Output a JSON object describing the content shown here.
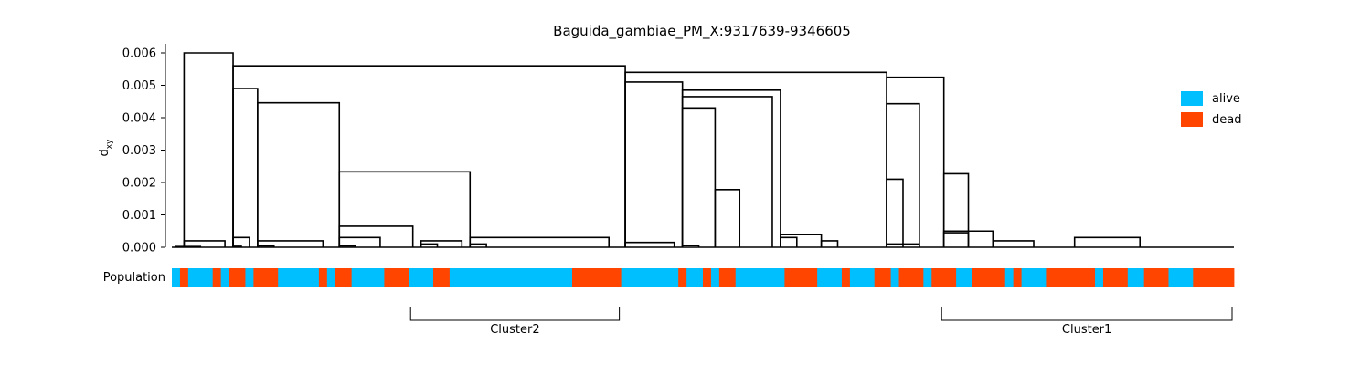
{
  "chart_data": {
    "type": "dendrogram",
    "title": "Baguida_gambiae_PM_X:9317639-9346605",
    "ylabel": "d",
    "ylabel_subscript": "xy",
    "ylim": [
      0,
      0.0063
    ],
    "yticks": [
      "0.000",
      "0.001",
      "0.002",
      "0.003",
      "0.004",
      "0.005",
      "0.006"
    ],
    "ytick_values": [
      0,
      0.001,
      0.002,
      0.003,
      0.004,
      0.005,
      0.006
    ],
    "leaf_count": 130,
    "grid": false,
    "legend": {
      "placement": "right",
      "entries": [
        {
          "label": "alive",
          "color": "#00BFFF"
        },
        {
          "label": "dead",
          "color": "#FF4500"
        }
      ]
    },
    "population_bar": {
      "label": "Population",
      "segments": [
        [
          "alive",
          1
        ],
        [
          "dead",
          1
        ],
        [
          "alive",
          3
        ],
        [
          "dead",
          1
        ],
        [
          "alive",
          1
        ],
        [
          "dead",
          2
        ],
        [
          "alive",
          1
        ],
        [
          "dead",
          3
        ],
        [
          "alive",
          5
        ],
        [
          "dead",
          1
        ],
        [
          "alive",
          1
        ],
        [
          "dead",
          2
        ],
        [
          "alive",
          4
        ],
        [
          "dead",
          3
        ],
        [
          "alive",
          3
        ],
        [
          "dead",
          2
        ],
        [
          "alive",
          15
        ],
        [
          "dead",
          6
        ],
        [
          "alive",
          7
        ],
        [
          "dead",
          1
        ],
        [
          "alive",
          2
        ],
        [
          "dead",
          1
        ],
        [
          "alive",
          1
        ],
        [
          "dead",
          2
        ],
        [
          "alive",
          6
        ],
        [
          "dead",
          4
        ],
        [
          "alive",
          3
        ],
        [
          "dead",
          1
        ],
        [
          "alive",
          3
        ],
        [
          "dead",
          2
        ],
        [
          "alive",
          1
        ],
        [
          "dead",
          3
        ],
        [
          "alive",
          1
        ],
        [
          "dead",
          3
        ],
        [
          "alive",
          2
        ],
        [
          "dead",
          4
        ],
        [
          "alive",
          1
        ],
        [
          "dead",
          1
        ],
        [
          "alive",
          3
        ],
        [
          "dead",
          6
        ],
        [
          "alive",
          1
        ],
        [
          "dead",
          3
        ],
        [
          "alive",
          2
        ],
        [
          "dead",
          3
        ],
        [
          "alive",
          3
        ],
        [
          "dead",
          5
        ]
      ]
    },
    "merges": [
      {
        "left": 0,
        "right": 3,
        "height": 2.5e-05
      },
      {
        "left": 1,
        "right": 6,
        "height": 0.0002
      },
      {
        "left": 7,
        "right": 8,
        "height": 3e-05
      },
      {
        "left": 7,
        "right": 9,
        "height": 0.0003
      },
      {
        "left": 10,
        "right": 12,
        "height": 4e-05
      },
      {
        "left": 10,
        "right": 18,
        "height": 0.0002
      },
      {
        "left": 20,
        "right": 22,
        "height": 4e-05
      },
      {
        "left": 20,
        "right": 25,
        "height": 0.0003
      },
      {
        "left": 20,
        "right": 29,
        "height": 0.00065
      },
      {
        "left": 30,
        "right": 32,
        "height": 0.0001
      },
      {
        "left": 30,
        "right": 35,
        "height": 0.0002
      },
      {
        "left": 36,
        "right": 38,
        "height": 0.0001
      },
      {
        "left": 36,
        "right": 53,
        "height": 0.0003
      },
      {
        "left": 20,
        "right": 36,
        "height": 0.00233
      },
      {
        "left": 10,
        "right": 20,
        "height": 0.00446
      },
      {
        "left": 7,
        "right": 10,
        "height": 0.0049
      },
      {
        "left": 55,
        "right": 61,
        "height": 0.00015
      },
      {
        "left": 62,
        "right": 64,
        "height": 5e-05
      },
      {
        "left": 66,
        "right": 69,
        "height": 0.00178
      },
      {
        "left": 62,
        "right": 66,
        "height": 0.0043
      },
      {
        "left": 62,
        "right": 73,
        "height": 0.00465
      },
      {
        "left": 74,
        "right": 76,
        "height": 0.0003
      },
      {
        "left": 79,
        "right": 81,
        "height": 0.0002
      },
      {
        "left": 74,
        "right": 79,
        "height": 0.0004
      },
      {
        "left": 62,
        "right": 74,
        "height": 0.00485
      },
      {
        "left": 55,
        "right": 62,
        "height": 0.0051
      },
      {
        "left": 87,
        "right": 91,
        "height": 0.0001
      },
      {
        "left": 87,
        "right": 89,
        "height": 0.0021
      },
      {
        "left": 87,
        "right": 91,
        "height": 0.00443
      },
      {
        "left": 94,
        "right": 97,
        "height": 0.00045
      },
      {
        "left": 100,
        "right": 105,
        "height": 0.0002
      },
      {
        "left": 110,
        "right": 118,
        "height": 0.0003
      },
      {
        "left": 94,
        "right": 100,
        "height": 0.0005
      },
      {
        "left": 94,
        "right": 97,
        "height": 0.00227
      },
      {
        "left": 87,
        "right": 94,
        "height": 0.00525
      },
      {
        "left": 55,
        "right": 87,
        "height": 0.0054
      },
      {
        "left": 7,
        "right": 55,
        "height": 0.0056
      },
      {
        "left": 1,
        "right": 7,
        "height": 0.006
      }
    ],
    "annotations": [
      {
        "label": "Cluster2",
        "from_leaf": 29,
        "to_leaf": 54
      },
      {
        "label": "Cluster1",
        "from_leaf": 94,
        "to_leaf": 129
      }
    ]
  }
}
